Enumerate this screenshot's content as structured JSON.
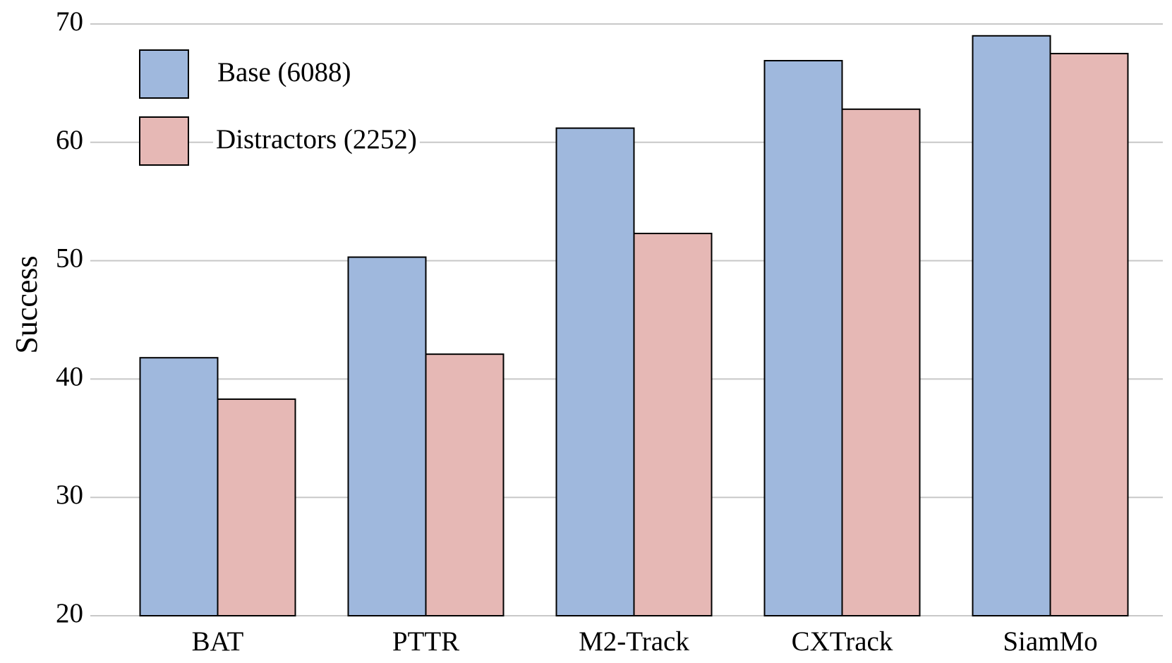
{
  "chart_data": {
    "type": "bar",
    "y_label": "Success",
    "categories": [
      "BAT",
      "PTTR",
      "M2-Track",
      "CXTrack",
      "SiamMo"
    ],
    "series": [
      {
        "name": "Base (6088)",
        "color": "#9fb8dd",
        "values": [
          41.8,
          50.3,
          61.2,
          66.9,
          69.0
        ]
      },
      {
        "name": "Distractors (2252)",
        "color": "#e6b8b5",
        "values": [
          38.3,
          42.1,
          52.3,
          62.8,
          67.5
        ]
      }
    ],
    "ylim": [
      20,
      70
    ],
    "yticks": [
      20,
      30,
      40,
      50,
      60,
      70
    ],
    "grid": true,
    "legend": "upper left"
  }
}
